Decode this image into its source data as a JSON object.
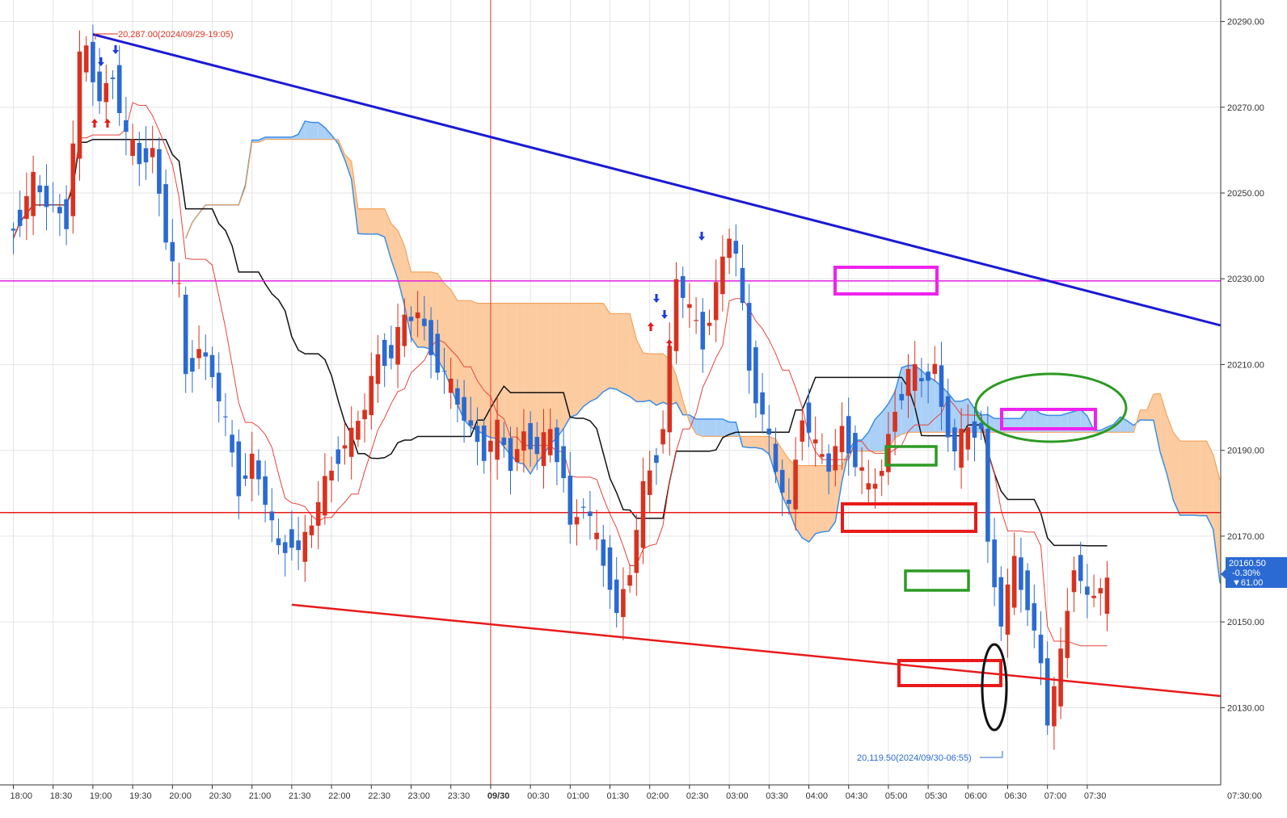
{
  "chart_data": {
    "type": "candlestick",
    "y_axis": {
      "min": 20112,
      "max": 20295,
      "ticks": [
        {
          "value": 20290,
          "label": "20290.00"
        },
        {
          "value": 20270,
          "label": "20270.00"
        },
        {
          "value": 20250,
          "label": "20250.00"
        },
        {
          "value": 20230,
          "label": "20230.00"
        },
        {
          "value": 20210,
          "label": "20210.00"
        },
        {
          "value": 20190,
          "label": "20190.00"
        },
        {
          "value": 20170,
          "label": "20170.00"
        },
        {
          "value": 20150,
          "label": "20150.00"
        },
        {
          "value": 20130,
          "label": "20130.00"
        }
      ]
    },
    "x_axis": {
      "ticks": [
        {
          "label": "18:00",
          "bar": 0
        },
        {
          "label": "18:30",
          "bar": 6
        },
        {
          "label": "19:00",
          "bar": 12
        },
        {
          "label": "19:30",
          "bar": 18
        },
        {
          "label": "20:00",
          "bar": 24
        },
        {
          "label": "20:30",
          "bar": 30
        },
        {
          "label": "21:00",
          "bar": 36
        },
        {
          "label": "21:30",
          "bar": 42
        },
        {
          "label": "22:00",
          "bar": 48
        },
        {
          "label": "22:30",
          "bar": 54
        },
        {
          "label": "23:00",
          "bar": 60
        },
        {
          "label": "23:30",
          "bar": 66
        },
        {
          "label": "09/30",
          "bar": 72,
          "bold": true
        },
        {
          "label": "00:30",
          "bar": 78
        },
        {
          "label": "01:00",
          "bar": 84
        },
        {
          "label": "01:30",
          "bar": 90
        },
        {
          "label": "02:00",
          "bar": 96
        },
        {
          "label": "02:30",
          "bar": 102
        },
        {
          "label": "03:00",
          "bar": 108
        },
        {
          "label": "03:30",
          "bar": 114
        },
        {
          "label": "04:00",
          "bar": 120
        },
        {
          "label": "04:30",
          "bar": 126
        },
        {
          "label": "05:00",
          "bar": 132
        },
        {
          "label": "05:30",
          "bar": 138
        },
        {
          "label": "06:00",
          "bar": 144
        },
        {
          "label": "06:30",
          "bar": 150
        },
        {
          "label": "07:00",
          "bar": 156
        },
        {
          "label": "07:30",
          "bar": 162
        }
      ],
      "right_label": "07:30:00"
    },
    "candles_by_key": [
      {
        "t": 0,
        "o": 20236,
        "c": 20240
      },
      {
        "t": 2,
        "o": 20240,
        "c": 20245
      },
      {
        "t": 4,
        "o": 20245,
        "c": 20252
      },
      {
        "t": 6,
        "o": 20252,
        "c": 20248
      },
      {
        "t": 9,
        "o": 20248,
        "c": 20244
      },
      {
        "t": 11,
        "o": 20244,
        "c": 20280
      },
      {
        "t": 12,
        "o": 20280,
        "c": 20283
      },
      {
        "t": 14,
        "o": 20283,
        "c": 20272
      },
      {
        "t": 16,
        "o": 20272,
        "c": 20278
      },
      {
        "t": 18,
        "o": 20278,
        "c": 20262
      },
      {
        "t": 20,
        "o": 20262,
        "c": 20258
      },
      {
        "t": 22,
        "o": 20258,
        "c": 20260
      },
      {
        "t": 24,
        "o": 20260,
        "c": 20240
      },
      {
        "t": 26,
        "o": 20240,
        "c": 20226
      },
      {
        "t": 27,
        "o": 20226,
        "c": 20208
      },
      {
        "t": 29,
        "o": 20208,
        "c": 20214
      },
      {
        "t": 31,
        "o": 20214,
        "c": 20208
      },
      {
        "t": 33,
        "o": 20208,
        "c": 20195
      },
      {
        "t": 35,
        "o": 20195,
        "c": 20182
      },
      {
        "t": 37,
        "o": 20182,
        "c": 20188
      },
      {
        "t": 39,
        "o": 20188,
        "c": 20178
      },
      {
        "t": 41,
        "o": 20178,
        "c": 20166
      },
      {
        "t": 43,
        "o": 20166,
        "c": 20170
      },
      {
        "t": 44,
        "o": 20170,
        "c": 20166
      },
      {
        "t": 46,
        "o": 20166,
        "c": 20173
      },
      {
        "t": 48,
        "o": 20173,
        "c": 20182
      },
      {
        "t": 50,
        "o": 20182,
        "c": 20190
      },
      {
        "t": 52,
        "o": 20190,
        "c": 20193
      },
      {
        "t": 54,
        "o": 20193,
        "c": 20200
      },
      {
        "t": 56,
        "o": 20200,
        "c": 20212
      },
      {
        "t": 58,
        "o": 20212,
        "c": 20213
      },
      {
        "t": 60,
        "o": 20213,
        "c": 20220
      },
      {
        "t": 62,
        "o": 20220,
        "c": 20222
      },
      {
        "t": 64,
        "o": 20222,
        "c": 20214
      },
      {
        "t": 66,
        "o": 20214,
        "c": 20207
      },
      {
        "t": 68,
        "o": 20207,
        "c": 20201
      },
      {
        "t": 70,
        "o": 20201,
        "c": 20195
      },
      {
        "t": 72,
        "o": 20195,
        "c": 20190
      },
      {
        "t": 74,
        "o": 20190,
        "c": 20194
      },
      {
        "t": 76,
        "o": 20194,
        "c": 20187
      },
      {
        "t": 78,
        "o": 20187,
        "c": 20194
      },
      {
        "t": 80,
        "o": 20194,
        "c": 20190
      },
      {
        "t": 82,
        "o": 20190,
        "c": 20193
      },
      {
        "t": 84,
        "o": 20193,
        "c": 20185
      },
      {
        "t": 85,
        "o": 20185,
        "c": 20172
      },
      {
        "t": 87,
        "o": 20172,
        "c": 20178
      },
      {
        "t": 89,
        "o": 20178,
        "c": 20168
      },
      {
        "t": 91,
        "o": 20168,
        "c": 20160
      },
      {
        "t": 92,
        "o": 20160,
        "c": 20152
      },
      {
        "t": 94,
        "o": 20152,
        "c": 20162
      },
      {
        "t": 96,
        "o": 20162,
        "c": 20180
      },
      {
        "t": 98,
        "o": 20180,
        "c": 20190
      },
      {
        "t": 99,
        "o": 20190,
        "c": 20196
      },
      {
        "t": 101,
        "o": 20196,
        "c": 20230
      },
      {
        "t": 103,
        "o": 20230,
        "c": 20222
      },
      {
        "t": 105,
        "o": 20222,
        "c": 20216
      },
      {
        "t": 107,
        "o": 20216,
        "c": 20228
      },
      {
        "t": 109,
        "o": 20228,
        "c": 20240
      },
      {
        "t": 110,
        "o": 20240,
        "c": 20235
      },
      {
        "t": 112,
        "o": 20235,
        "c": 20210
      },
      {
        "t": 114,
        "o": 20210,
        "c": 20198
      },
      {
        "t": 116,
        "o": 20198,
        "c": 20185
      },
      {
        "t": 118,
        "o": 20185,
        "c": 20176
      },
      {
        "t": 120,
        "o": 20176,
        "c": 20200
      },
      {
        "t": 122,
        "o": 20200,
        "c": 20190
      },
      {
        "t": 124,
        "o": 20190,
        "c": 20186
      },
      {
        "t": 126,
        "o": 20186,
        "c": 20195
      },
      {
        "t": 128,
        "o": 20195,
        "c": 20188
      },
      {
        "t": 130,
        "o": 20188,
        "c": 20180
      },
      {
        "t": 132,
        "o": 20180,
        "c": 20186
      },
      {
        "t": 134,
        "o": 20186,
        "c": 20200
      },
      {
        "t": 136,
        "o": 20200,
        "c": 20208
      },
      {
        "t": 138,
        "o": 20208,
        "c": 20206
      },
      {
        "t": 140,
        "o": 20206,
        "c": 20210
      },
      {
        "t": 141,
        "o": 20210,
        "c": 20200
      },
      {
        "t": 143,
        "o": 20200,
        "c": 20190
      },
      {
        "t": 145,
        "o": 20190,
        "c": 20194
      },
      {
        "t": 147,
        "o": 20194,
        "c": 20196
      },
      {
        "t": 148,
        "o": 20196,
        "c": 20168
      },
      {
        "t": 150,
        "o": 20168,
        "c": 20150
      },
      {
        "t": 152,
        "o": 20150,
        "c": 20163
      },
      {
        "t": 154,
        "o": 20163,
        "c": 20155
      },
      {
        "t": 156,
        "o": 20155,
        "c": 20140
      },
      {
        "t": 157,
        "o": 20140,
        "c": 20127
      },
      {
        "t": 159,
        "o": 20127,
        "c": 20141
      },
      {
        "t": 161,
        "o": 20141,
        "c": 20165
      },
      {
        "t": 163,
        "o": 20165,
        "c": 20155
      },
      {
        "t": 165,
        "o": 20155,
        "c": 20158
      }
    ],
    "lines": {
      "blue_trendline": {
        "from": {
          "bar": 12,
          "value": 20287
        },
        "to": {
          "bar": 200,
          "value": 20212
        }
      },
      "red_trendline": {
        "from": {
          "bar": 42,
          "value": 20154
        },
        "to": {
          "bar": 200,
          "value": 20130
        }
      },
      "magenta_horizontal": 20229.5,
      "red_horizontal": 20175.5
    },
    "annotations": {
      "high": "20,287.00(2024/09/29-19:05)",
      "low": "20,119.50(2024/09/30-06:55)"
    },
    "price_tag": {
      "price": "20160.50",
      "change_pct": "-0.30%",
      "change": "▼61.00"
    }
  }
}
